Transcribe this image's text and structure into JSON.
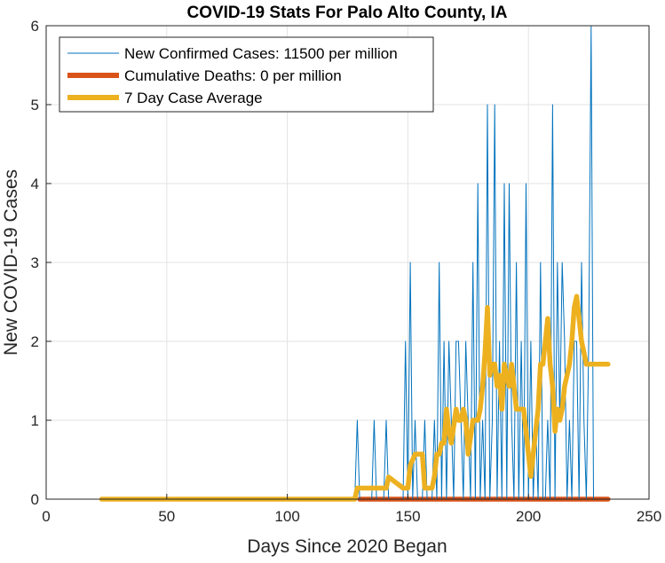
{
  "chart_data": {
    "type": "line",
    "title": "COVID-19 Stats For Palo Alto County, IA",
    "xlabel": "Days Since 2020 Began",
    "ylabel": "New COVID-19 Cases",
    "xlim": [
      0,
      250
    ],
    "ylim": [
      0,
      6
    ],
    "xticks": [
      0,
      50,
      100,
      150,
      200,
      250
    ],
    "yticks": [
      0,
      1,
      2,
      3,
      4,
      5,
      6
    ],
    "grid": true,
    "legend_position": "top-left",
    "series": [
      {
        "name": "New Confirmed Cases: 11500 per million",
        "color": "#0072BD",
        "style": "thin",
        "x": [
          23,
          128,
          129,
          130,
          135,
          136,
          137,
          140,
          141,
          142,
          148,
          149,
          150,
          151,
          152,
          153,
          154,
          156,
          157,
          158,
          159,
          160,
          161,
          162,
          163,
          164,
          165,
          166,
          167,
          168,
          169,
          170,
          171,
          172,
          173,
          174,
          175,
          176,
          177,
          178,
          179,
          180,
          181,
          182,
          183,
          184,
          185,
          186,
          187,
          188,
          189,
          190,
          191,
          192,
          193,
          194,
          195,
          196,
          197,
          198,
          199,
          200,
          201,
          202,
          203,
          204,
          205,
          206,
          207,
          208,
          209,
          210,
          211,
          212,
          213,
          214,
          215,
          216,
          217,
          218,
          219,
          220,
          221,
          222,
          223,
          224,
          225,
          226,
          227,
          228,
          229,
          230,
          231,
          232
        ],
        "y": [
          0,
          0,
          1,
          0,
          0,
          1,
          0,
          0,
          1,
          0,
          0,
          2,
          0,
          3,
          0,
          1,
          0,
          0,
          1,
          0,
          0,
          0,
          1,
          0,
          3,
          0,
          2,
          0,
          2,
          1,
          0,
          2,
          2,
          1,
          0,
          2,
          1,
          0,
          3,
          0,
          4,
          0,
          1,
          0,
          5,
          0,
          1,
          5,
          0,
          2,
          0,
          4,
          0,
          4,
          1,
          0,
          3,
          0,
          2,
          0,
          4,
          0,
          2,
          0,
          1,
          0,
          3,
          0,
          0,
          1,
          0,
          5,
          0,
          3,
          1,
          3,
          2,
          0,
          1,
          0,
          2,
          2,
          0,
          3,
          1,
          0,
          2,
          6,
          0,
          0,
          0,
          0,
          0,
          0
        ]
      },
      {
        "name": "Cumulative Deaths: 0 per million",
        "color": "#D95319",
        "style": "thick",
        "x": [
          130,
          233
        ],
        "y": [
          0,
          0
        ]
      },
      {
        "name": "7 Day Case Average",
        "color": "#EDB120",
        "style": "thick",
        "x": [
          23,
          128,
          129,
          136,
          137,
          141,
          142,
          148,
          149,
          150,
          151,
          153,
          154,
          156,
          157,
          158,
          160,
          161,
          162,
          163,
          164,
          165,
          166,
          167,
          168,
          170,
          171,
          172,
          173,
          174,
          175,
          177,
          178,
          179,
          180,
          181,
          182,
          183,
          184,
          185,
          186,
          187,
          188,
          189,
          190,
          191,
          192,
          193,
          194,
          195,
          196,
          197,
          198,
          199,
          200,
          201,
          202,
          203,
          204,
          205,
          206,
          207,
          208,
          209,
          210,
          211,
          212,
          213,
          214,
          215,
          216,
          217,
          218,
          219,
          220,
          221,
          222,
          223,
          224,
          225,
          226,
          227,
          228,
          229,
          230,
          231,
          232,
          233
        ],
        "y": [
          0,
          0,
          0.14,
          0.14,
          0.14,
          0.14,
          0.28,
          0.14,
          0.14,
          0.14,
          0.43,
          0.57,
          0.57,
          0.57,
          0.14,
          0.14,
          0.14,
          0.29,
          0.57,
          0.57,
          0.71,
          0.71,
          1.14,
          0.86,
          0.71,
          1.14,
          1.0,
          1.0,
          1.14,
          1.0,
          0.57,
          1.0,
          1.0,
          1.0,
          1.14,
          1.43,
          1.86,
          2.43,
          1.57,
          1.71,
          1.71,
          1.43,
          1.57,
          1.14,
          1.71,
          1.57,
          1.43,
          1.71,
          1.43,
          1.14,
          1.14,
          1.14,
          1.14,
          0.86,
          0.57,
          0.29,
          0.57,
          0.86,
          1.14,
          1.71,
          1.71,
          2.0,
          2.29,
          1.71,
          1.43,
          0.86,
          1.14,
          1.0,
          1.14,
          1.43,
          1.57,
          1.71,
          2.0,
          2.43,
          2.57,
          2.29,
          2.0,
          1.86,
          1.71,
          1.71,
          1.71,
          1.71,
          1.71,
          1.71,
          1.71,
          1.71,
          1.71,
          1.71
        ]
      }
    ]
  }
}
